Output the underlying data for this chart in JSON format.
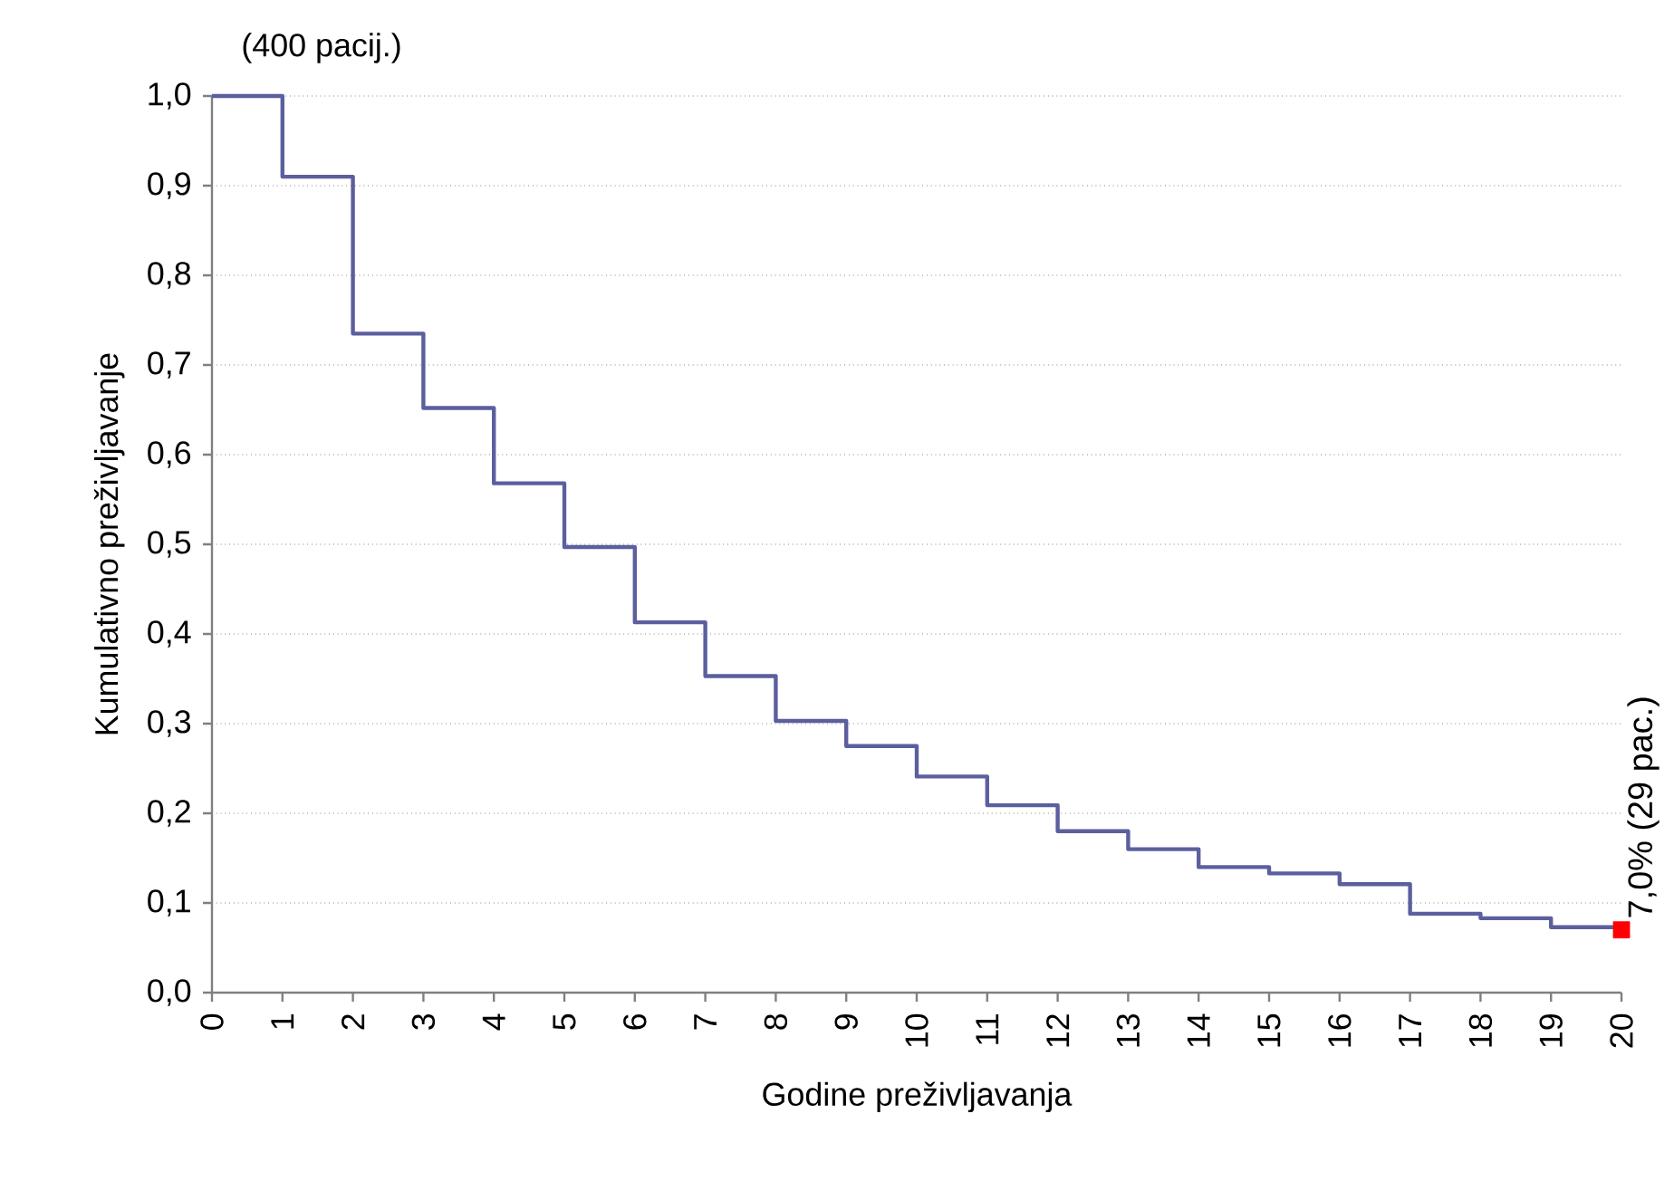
{
  "chart_data": {
    "type": "step",
    "xlabel": "Godine preživljavanja",
    "ylabel": "Kumulativno preživljavanje",
    "x": [
      0,
      1,
      2,
      3,
      4,
      5,
      6,
      7,
      8,
      9,
      10,
      11,
      12,
      13,
      14,
      15,
      16,
      17,
      18,
      19,
      20
    ],
    "series": [
      {
        "color": "#5c5f9e",
        "marker": "none",
        "line_style": "solid",
        "values": [
          1.0,
          0.91,
          0.735,
          0.652,
          0.568,
          0.497,
          0.413,
          0.353,
          0.303,
          0.275,
          0.241,
          0.209,
          0.18,
          0.16,
          0.14,
          0.133,
          0.121,
          0.088,
          0.083,
          0.073,
          0.073
        ]
      },
      {
        "type": "scatter",
        "color": "#ff0000",
        "marker": "square",
        "x": [
          20
        ],
        "values": [
          0.07
        ]
      }
    ],
    "xlim": [
      0,
      20
    ],
    "xticks": [
      0,
      1,
      2,
      3,
      4,
      5,
      6,
      7,
      8,
      9,
      10,
      11,
      12,
      13,
      14,
      15,
      16,
      17,
      18,
      19,
      20
    ],
    "ylim": [
      0,
      1.0
    ],
    "yticks": [
      {
        "value": 0,
        "label": "0,0"
      },
      {
        "value": 0.1,
        "label": "0,1"
      },
      {
        "value": 0.2,
        "label": "0,2"
      },
      {
        "value": 0.3,
        "label": "0,3"
      },
      {
        "value": 0.4,
        "label": "0,4"
      },
      {
        "value": 0.5,
        "label": "0,5"
      },
      {
        "value": 0.6,
        "label": "0,6"
      },
      {
        "value": 0.7,
        "label": "0,7"
      },
      {
        "value": 0.8,
        "label": "0,8"
      },
      {
        "value": 0.9,
        "label": "0,9"
      },
      {
        "value": 1.0,
        "label": "1,0"
      }
    ],
    "grid": "y",
    "annotations": [
      "(400 pacij.)",
      {
        "text": "7,0% (29 pac.)",
        "x": 20,
        "y": 0.07
      }
    ]
  }
}
